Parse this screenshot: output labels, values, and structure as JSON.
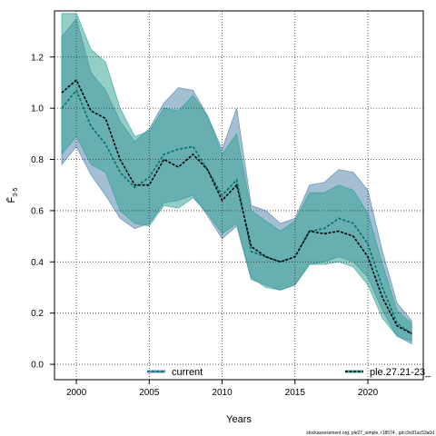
{
  "chart_data": {
    "type": "area",
    "title": "",
    "xlabel": "Years",
    "ylabel": "F̄",
    "ylabel_sub": "3-5",
    "xlim": [
      1998.5,
      2023.8
    ],
    "ylim": [
      -0.06,
      1.38
    ],
    "x_ticks": [
      2000,
      2005,
      2010,
      2015,
      2020
    ],
    "y_ticks": [
      0.0,
      0.2,
      0.4,
      0.6,
      0.8,
      1.0,
      1.2
    ],
    "y_tick_labels": [
      "0.0",
      "0.2",
      "0.4",
      "0.6",
      "0.8",
      "1.0",
      "1.2"
    ],
    "grid": true,
    "legend": [
      {
        "name": "current",
        "position": "bottom-left"
      },
      {
        "name": "ple.27.21-23_",
        "position": "bottom-right"
      }
    ],
    "series": [
      {
        "name": "current",
        "color": "#006d6d",
        "band_color": "#4a7fa8",
        "x": [
          1999,
          2000,
          2001,
          2002,
          2003,
          2004,
          2005,
          2006,
          2007,
          2008,
          2009,
          2010,
          2011,
          2012,
          2013,
          2014,
          2015,
          2016,
          2017,
          2018,
          2019,
          2020,
          2021,
          2022,
          2023
        ],
        "values": [
          1.0,
          1.07,
          0.93,
          0.86,
          0.75,
          0.69,
          0.73,
          0.82,
          0.84,
          0.85,
          0.76,
          0.66,
          0.72,
          0.44,
          0.42,
          0.4,
          0.42,
          0.52,
          0.53,
          0.57,
          0.55,
          0.47,
          0.3,
          0.16,
          0.12
        ],
        "lower": [
          0.78,
          0.85,
          0.74,
          0.66,
          0.57,
          0.53,
          0.55,
          0.63,
          0.64,
          0.66,
          0.58,
          0.49,
          0.54,
          0.33,
          0.31,
          0.29,
          0.31,
          0.39,
          0.4,
          0.42,
          0.4,
          0.34,
          0.21,
          0.11,
          0.08
        ],
        "upper": [
          1.28,
          1.35,
          1.14,
          1.07,
          0.95,
          0.87,
          0.92,
          1.02,
          1.08,
          1.07,
          0.97,
          0.84,
          1.0,
          0.62,
          0.6,
          0.55,
          0.57,
          0.7,
          0.71,
          0.76,
          0.75,
          0.68,
          0.44,
          0.24,
          0.17
        ]
      },
      {
        "name": "ple.27.21-23_",
        "color": "#000000",
        "band_color": "#2aa090",
        "x": [
          1999,
          2000,
          2001,
          2002,
          2003,
          2004,
          2005,
          2006,
          2007,
          2008,
          2009,
          2010,
          2011,
          2012,
          2013,
          2014,
          2015,
          2016,
          2017,
          2018,
          2019,
          2020,
          2021,
          2022,
          2023
        ],
        "values": [
          1.06,
          1.11,
          0.99,
          0.96,
          0.8,
          0.7,
          0.7,
          0.8,
          0.77,
          0.82,
          0.76,
          0.64,
          0.7,
          0.46,
          0.42,
          0.4,
          0.42,
          0.52,
          0.51,
          0.52,
          0.5,
          0.42,
          0.26,
          0.15,
          0.12
        ],
        "lower": [
          0.82,
          0.89,
          0.78,
          0.75,
          0.6,
          0.55,
          0.54,
          0.62,
          0.61,
          0.65,
          0.59,
          0.51,
          0.55,
          0.34,
          0.3,
          0.29,
          0.31,
          0.39,
          0.39,
          0.4,
          0.38,
          0.31,
          0.18,
          0.11,
          0.09
        ],
        "upper": [
          1.37,
          1.37,
          1.23,
          1.18,
          1.0,
          0.89,
          0.91,
          1.0,
          0.99,
          1.05,
          0.97,
          0.82,
          0.9,
          0.6,
          0.56,
          0.52,
          0.56,
          0.67,
          0.67,
          0.7,
          0.68,
          0.59,
          0.39,
          0.21,
          0.16
        ]
      }
    ]
  },
  "footer": {
    "credit": "stockassessment.org, ple27_simple, r18574 , git:c9c81ac53a0d"
  }
}
